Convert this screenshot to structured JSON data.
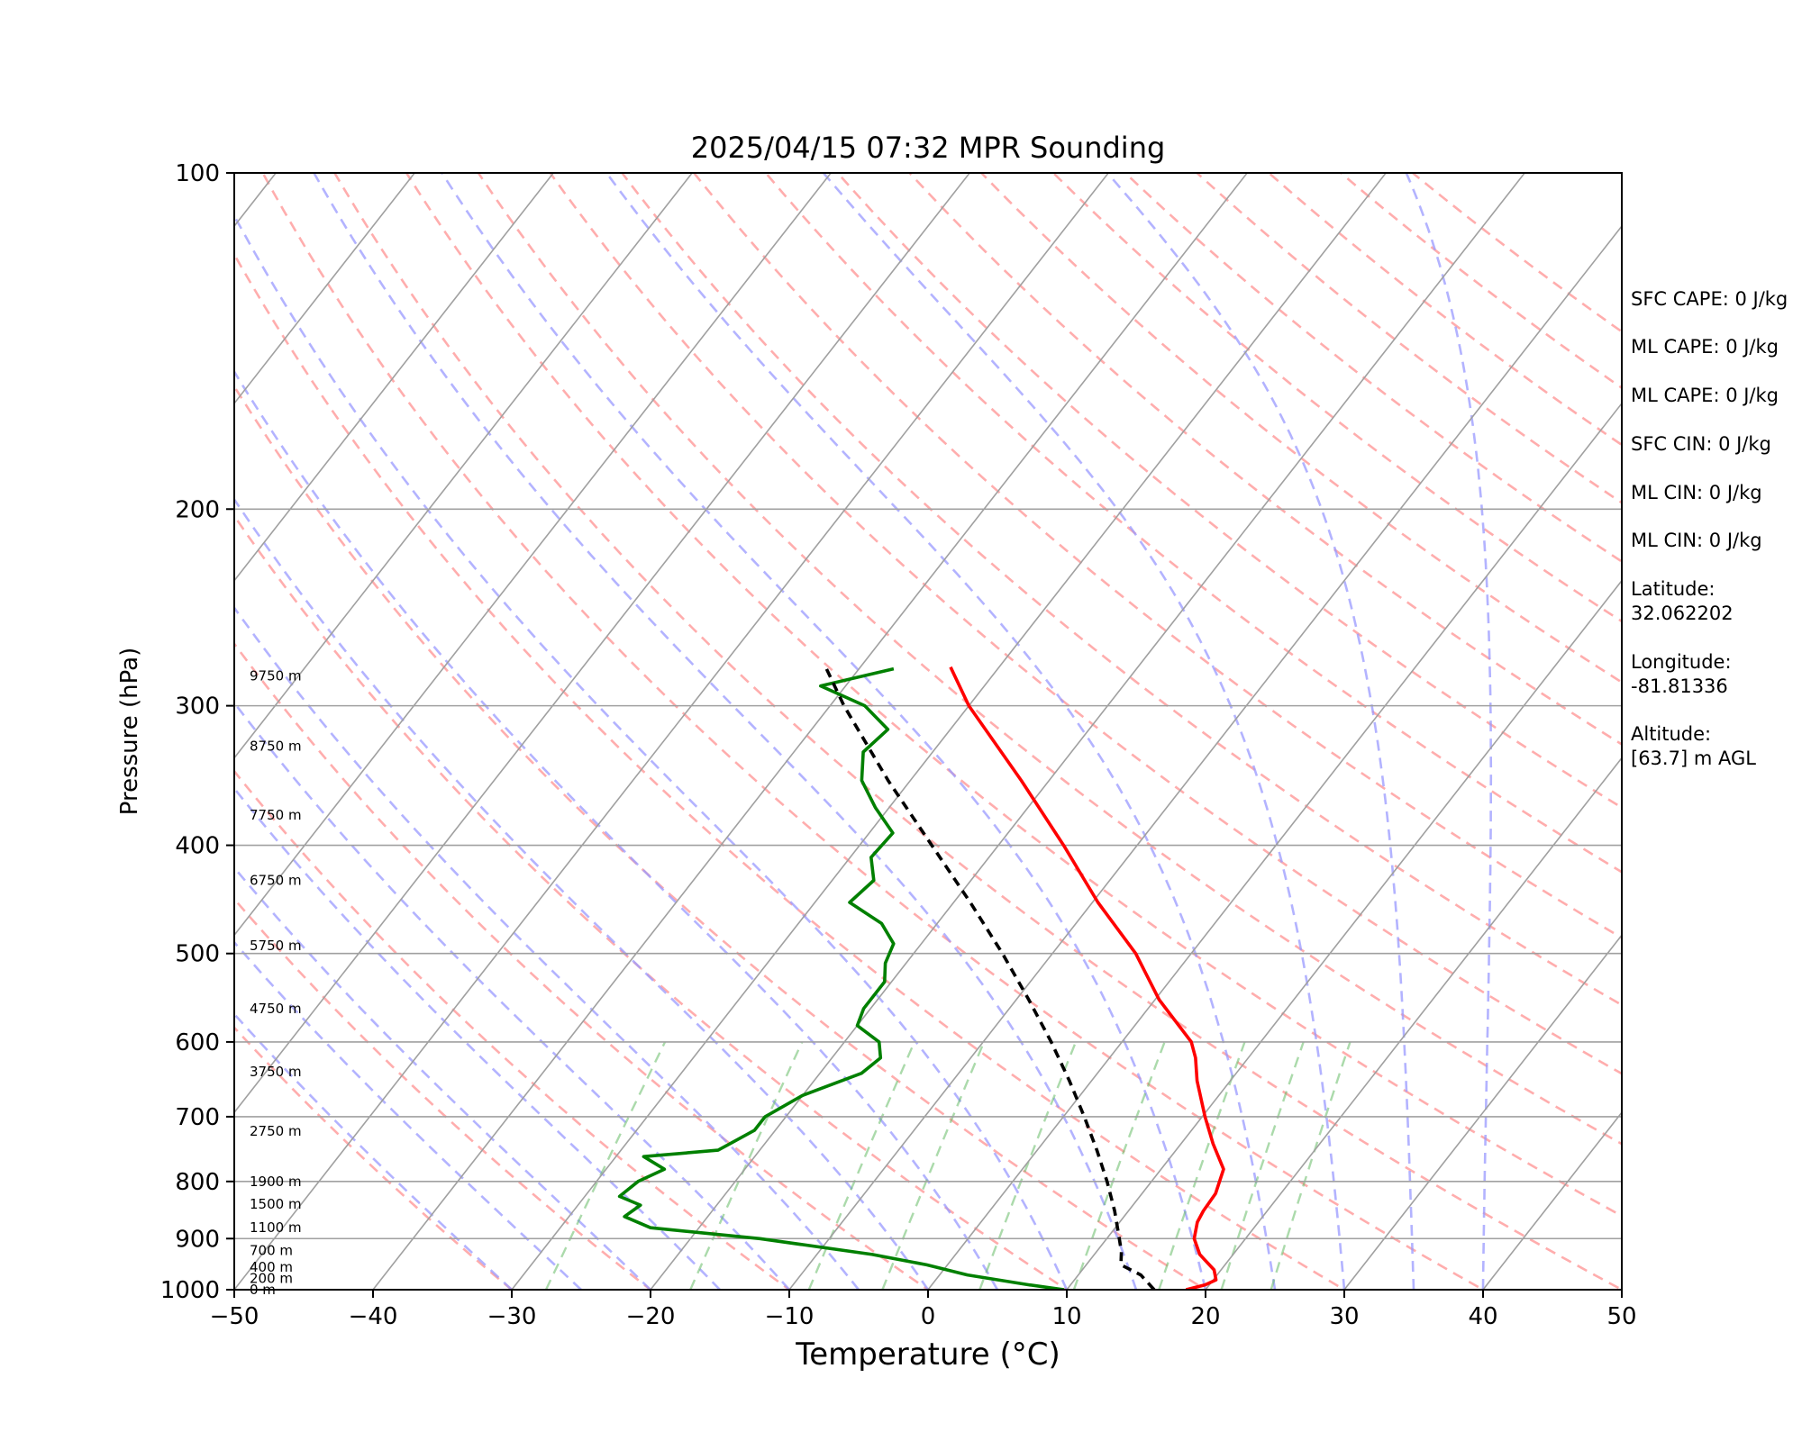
{
  "chart_data": {
    "type": "line",
    "title": "2025/04/15 07:32 MPR Sounding",
    "xlabel": "Temperature (°C)",
    "ylabel": "Pressure (hPa)",
    "xlim": [
      -50,
      50
    ],
    "ylim": [
      1000,
      100
    ],
    "y_scale": "log",
    "skew": "skew-T log-P diagram",
    "x_ticks": [
      "−50",
      "−40",
      "−30",
      "−20",
      "−10",
      "0",
      "10",
      "20",
      "30",
      "40",
      "50"
    ],
    "y_ticks": [
      "100",
      "200",
      "300",
      "400",
      "500",
      "600",
      "700",
      "800",
      "900",
      "1000"
    ],
    "grid": true,
    "series": [
      {
        "color": "#ff0000",
        "points": [
          {
            "p": 1000,
            "t": 18.6
          },
          {
            "p": 990,
            "t": 19.7
          },
          {
            "p": 980,
            "t": 20.2
          },
          {
            "p": 960,
            "t": 19.5
          },
          {
            "p": 930,
            "t": 17.6
          },
          {
            "p": 900,
            "t": 16.3
          },
          {
            "p": 870,
            "t": 15.6
          },
          {
            "p": 850,
            "t": 15.4
          },
          {
            "p": 820,
            "t": 15.3
          },
          {
            "p": 780,
            "t": 14.5
          },
          {
            "p": 740,
            "t": 12.3
          },
          {
            "p": 700,
            "t": 10.2
          },
          {
            "p": 650,
            "t": 7.6
          },
          {
            "p": 620,
            "t": 6.2
          },
          {
            "p": 600,
            "t": 5.0
          },
          {
            "p": 550,
            "t": 0.3
          },
          {
            "p": 500,
            "t": -4.0
          },
          {
            "p": 450,
            "t": -9.6
          },
          {
            "p": 400,
            "t": -15.3
          },
          {
            "p": 350,
            "t": -22.0
          },
          {
            "p": 300,
            "t": -30.0
          },
          {
            "p": 277,
            "t": -33.5
          }
        ]
      },
      {
        "color": "#008000",
        "points": [
          {
            "p": 1000,
            "t": 9.8
          },
          {
            "p": 990,
            "t": 7.0
          },
          {
            "p": 970,
            "t": 2.0
          },
          {
            "p": 950,
            "t": -1.5
          },
          {
            "p": 930,
            "t": -6.0
          },
          {
            "p": 900,
            "t": -15.0
          },
          {
            "p": 880,
            "t": -23.5
          },
          {
            "p": 860,
            "t": -26.0
          },
          {
            "p": 840,
            "t": -25.5
          },
          {
            "p": 825,
            "t": -27.5
          },
          {
            "p": 800,
            "t": -27.0
          },
          {
            "p": 780,
            "t": -25.8
          },
          {
            "p": 760,
            "t": -28.0
          },
          {
            "p": 750,
            "t": -23.0
          },
          {
            "p": 720,
            "t": -21.5
          },
          {
            "p": 700,
            "t": -21.5
          },
          {
            "p": 670,
            "t": -20.0
          },
          {
            "p": 640,
            "t": -17.0
          },
          {
            "p": 620,
            "t": -16.5
          },
          {
            "p": 600,
            "t": -17.5
          },
          {
            "p": 580,
            "t": -20.0
          },
          {
            "p": 560,
            "t": -20.5
          },
          {
            "p": 530,
            "t": -20.5
          },
          {
            "p": 510,
            "t": -21.5
          },
          {
            "p": 490,
            "t": -22.0
          },
          {
            "p": 470,
            "t": -24.0
          },
          {
            "p": 450,
            "t": -27.5
          },
          {
            "p": 430,
            "t": -27.0
          },
          {
            "p": 410,
            "t": -28.5
          },
          {
            "p": 390,
            "t": -28.3
          },
          {
            "p": 370,
            "t": -31.0
          },
          {
            "p": 350,
            "t": -33.5
          },
          {
            "p": 330,
            "t": -35.0
          },
          {
            "p": 315,
            "t": -34.5
          },
          {
            "p": 300,
            "t": -37.5
          },
          {
            "p": 288,
            "t": -41.8
          },
          {
            "p": 278,
            "t": -37.5
          }
        ]
      },
      {
        "color": "#000000",
        "dashed": true,
        "points": [
          {
            "p": 1000,
            "t": 16.3
          },
          {
            "p": 970,
            "t": 14.5
          },
          {
            "p": 950,
            "t": 12.5
          },
          {
            "p": 925,
            "t": 11.8
          },
          {
            "p": 900,
            "t": 10.9
          },
          {
            "p": 850,
            "t": 9.0
          },
          {
            "p": 800,
            "t": 6.8
          },
          {
            "p": 750,
            "t": 4.3
          },
          {
            "p": 700,
            "t": 1.5
          },
          {
            "p": 650,
            "t": -1.6
          },
          {
            "p": 600,
            "t": -5.1
          },
          {
            "p": 550,
            "t": -9.1
          },
          {
            "p": 500,
            "t": -13.6
          },
          {
            "p": 450,
            "t": -18.8
          },
          {
            "p": 400,
            "t": -24.8
          },
          {
            "p": 350,
            "t": -31.6
          },
          {
            "p": 300,
            "t": -39.0
          },
          {
            "p": 277,
            "t": -42.5
          }
        ]
      }
    ],
    "reference_lines": {
      "dry_adiabat_color": "#ff9999",
      "moist_adiabat_color": "#9999ff",
      "mixing_ratio_color": "#66bb66",
      "isotherm_color": "#a0a0a0"
    },
    "height_labels": [
      {
        "p": 1000,
        "label": "0 m"
      },
      {
        "p": 977,
        "label": "200 m"
      },
      {
        "p": 955,
        "label": "400 m"
      },
      {
        "p": 922,
        "label": "700 m"
      },
      {
        "p": 880,
        "label": "1100 m"
      },
      {
        "p": 838,
        "label": "1500 m"
      },
      {
        "p": 800,
        "label": "1900 m"
      },
      {
        "p": 721,
        "label": "2750 m"
      },
      {
        "p": 638,
        "label": "3750 m"
      },
      {
        "p": 560,
        "label": "4750 m"
      },
      {
        "p": 492,
        "label": "5750 m"
      },
      {
        "p": 430,
        "label": "6750 m"
      },
      {
        "p": 376,
        "label": "7750 m"
      },
      {
        "p": 326,
        "label": "8750 m"
      },
      {
        "p": 282,
        "label": "9750 m"
      }
    ],
    "annotations": [
      "SFC CAPE: 0 J/kg",
      "ML CAPE: 0 J/kg",
      "ML CAPE: 0 J/kg",
      "SFC CIN: 0 J/kg",
      "ML CIN: 0 J/kg",
      "ML CIN: 0 J/kg",
      "Latitude:",
      "32.062202",
      "Longitude:",
      "-81.81336",
      "Altitude:",
      "[63.7] m AGL"
    ]
  }
}
